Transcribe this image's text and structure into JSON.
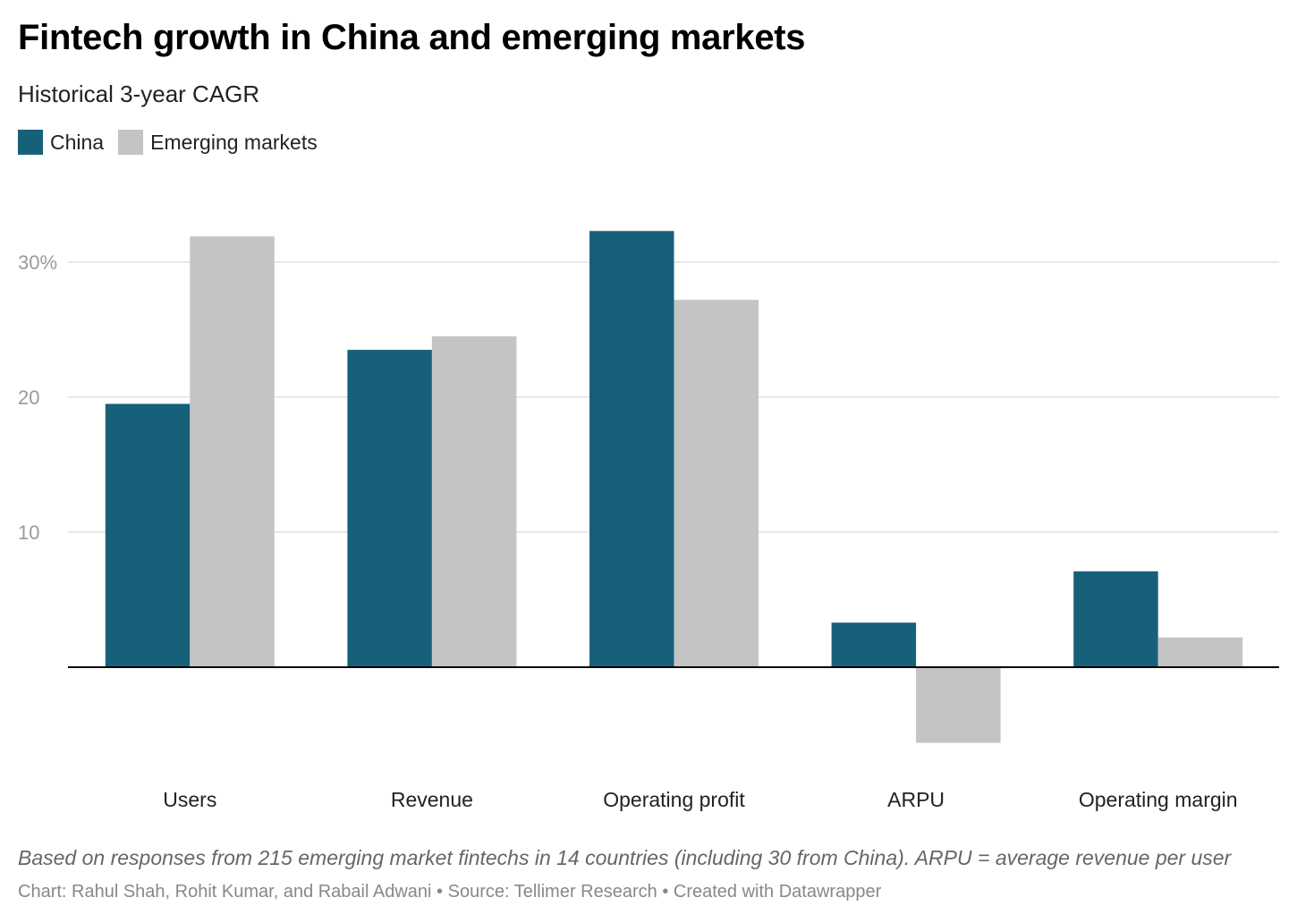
{
  "header": {
    "title": "Fintech growth in China and emerging markets",
    "subtitle": "Historical 3-year CAGR"
  },
  "colors": {
    "china": "#17607a",
    "emerging": "#c4c4c4",
    "grid": "#e0e0e0",
    "axis": "#000000",
    "tick_text": "#9a9a9a"
  },
  "legend": [
    {
      "name": "China",
      "color": "#17607a"
    },
    {
      "name": "Emerging markets",
      "color": "#c4c4c4"
    }
  ],
  "chart_data": {
    "type": "bar",
    "title": "Fintech growth in China and emerging markets",
    "subtitle": "Historical 3-year CAGR",
    "xlabel": "",
    "ylabel": "",
    "categories": [
      "Users",
      "Revenue",
      "Operating profit",
      "ARPU",
      "Operating margin"
    ],
    "series": [
      {
        "name": "China",
        "values": [
          19.5,
          23.5,
          32.3,
          3.3,
          7.1
        ]
      },
      {
        "name": "Emerging markets",
        "values": [
          31.9,
          24.5,
          27.2,
          -5.6,
          2.2
        ]
      }
    ],
    "ylim": [
      -7,
      34
    ],
    "yticks": [
      {
        "value": 10,
        "label": "10"
      },
      {
        "value": 20,
        "label": "20"
      },
      {
        "value": 30,
        "label": "30%"
      }
    ],
    "grid": true,
    "legend_position": "top-left"
  },
  "footer": {
    "notes": "Based on responses from 215 emerging market fintechs in 14 countries (including 30 from China). ARPU = average revenue per user",
    "credit": "Chart: Rahul Shah, Rohit Kumar, and Rabail Adwani • Source: Tellimer Research • Created with Datawrapper"
  }
}
